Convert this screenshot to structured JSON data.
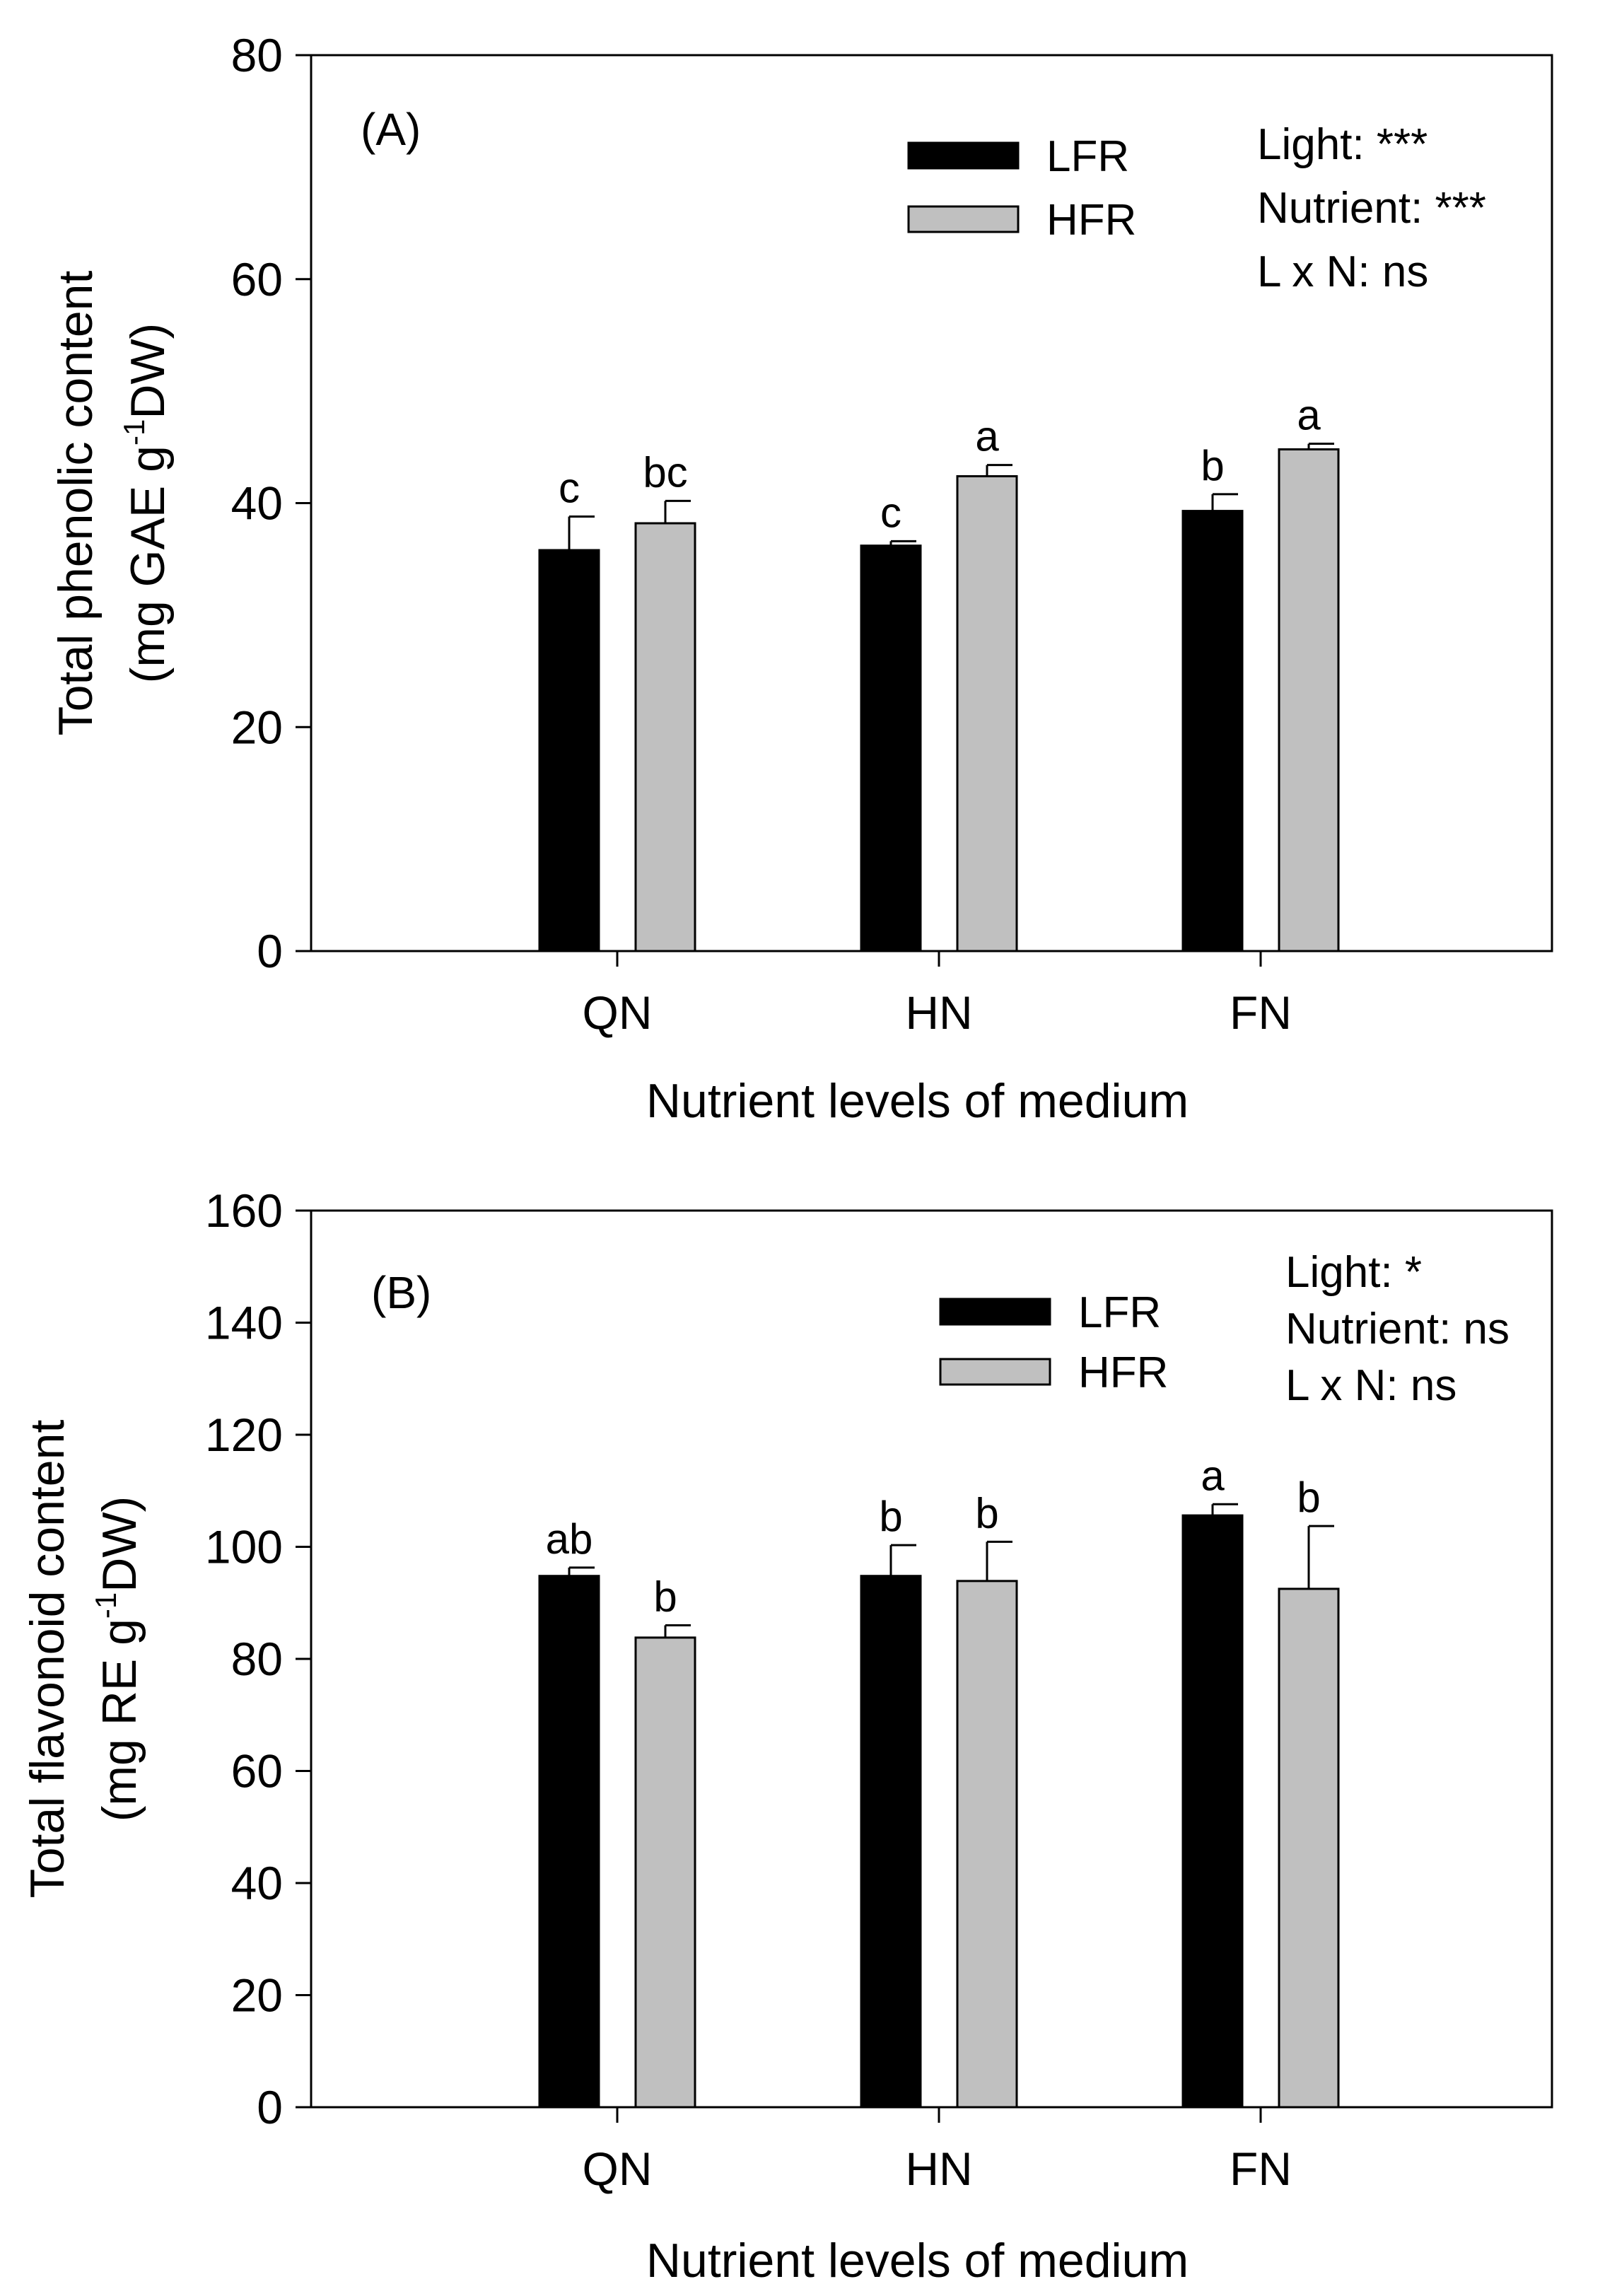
{
  "chart_data": [
    {
      "type": "bar",
      "panel_label": "(A)",
      "categories": [
        "QN",
        "HN",
        "FN"
      ],
      "xlabel": "Nutrient levels of medium",
      "ylabel_line1": "Total phenolic content",
      "ylabel_line2": {
        "pre": "(mg GAE g",
        "sup": "-1",
        "post": "DW)"
      },
      "ylim": [
        0,
        80
      ],
      "yticks": [
        0,
        20,
        40,
        60,
        80
      ],
      "series": [
        {
          "name": "LFR",
          "color": "#000000",
          "values": [
            35.8,
            36.2,
            39.3
          ],
          "errors": [
            3.0,
            0.4,
            1.5
          ],
          "letters": [
            "c",
            "c",
            "b"
          ]
        },
        {
          "name": "HFR",
          "color": "#c0c0c0",
          "values": [
            38.2,
            42.4,
            44.8
          ],
          "errors": [
            2.0,
            1.0,
            0.5
          ],
          "letters": [
            "bc",
            "a",
            "a"
          ]
        }
      ],
      "stats": [
        "Light: ***",
        "Nutrient: ***",
        "L x N: ns"
      ]
    },
    {
      "type": "bar",
      "panel_label": "(B)",
      "categories": [
        "QN",
        "HN",
        "FN"
      ],
      "xlabel": "Nutrient levels of medium",
      "ylabel_line1": "Total flavonoid content",
      "ylabel_line2": {
        "pre": "(mg RE g",
        "sup": "-1",
        "post": "DW)"
      },
      "ylim": [
        0,
        160
      ],
      "yticks": [
        0,
        20,
        40,
        60,
        80,
        100,
        120,
        140,
        160
      ],
      "series": [
        {
          "name": "LFR",
          "color": "#000000",
          "values": [
            94.8,
            94.8,
            105.6
          ],
          "errors": [
            1.5,
            5.5,
            2.0
          ],
          "letters": [
            "ab",
            "b",
            "a"
          ]
        },
        {
          "name": "HFR",
          "color": "#c0c0c0",
          "values": [
            83.8,
            93.9,
            92.5
          ],
          "errors": [
            2.2,
            7.0,
            11.2
          ],
          "letters": [
            "b",
            "b",
            "b"
          ]
        }
      ],
      "stats": [
        "Light: *",
        "Nutrient: ns",
        "L x N: ns"
      ]
    }
  ]
}
